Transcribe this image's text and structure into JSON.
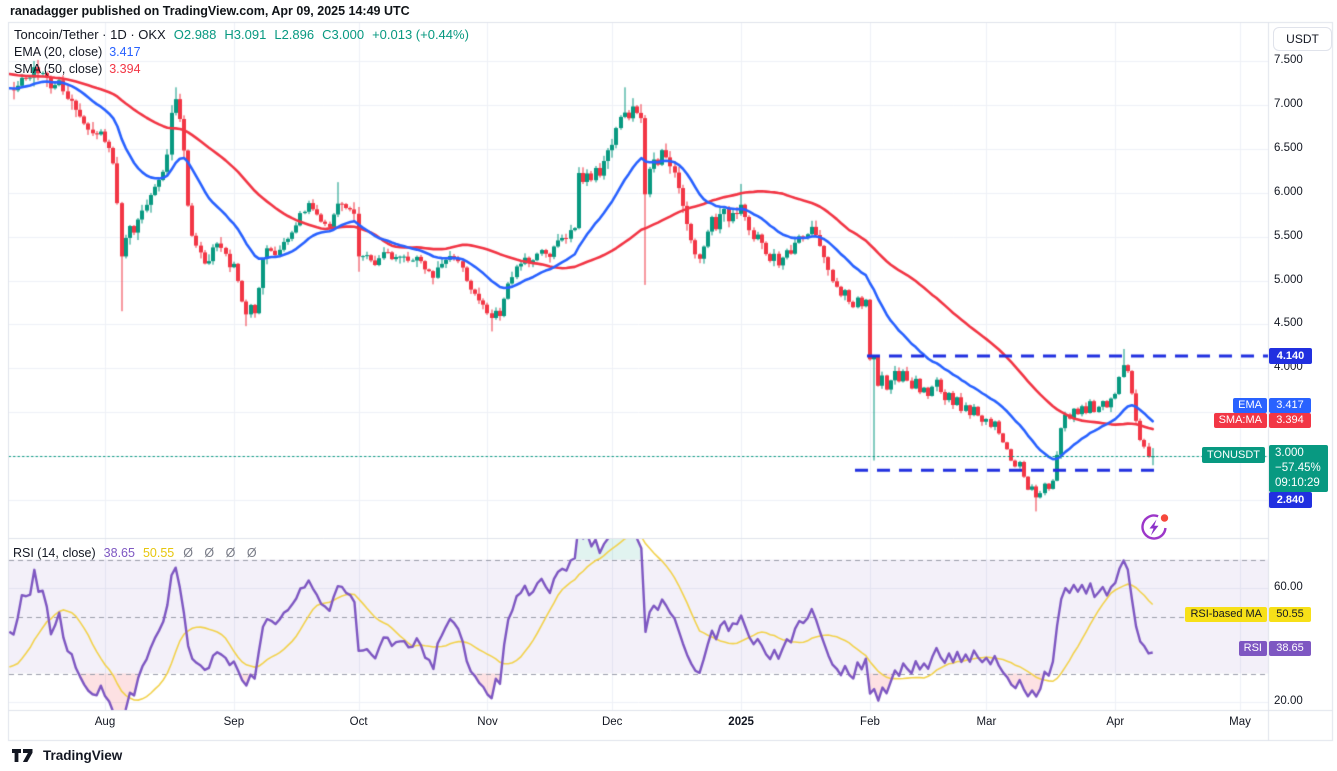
{
  "topbar": {
    "attribution": "ranadagger published on TradingView.com, Apr 09, 2025 14:49 UTC"
  },
  "legend": {
    "symbol": "Toncoin/Tether · 1D · OKX",
    "ohlc": [
      {
        "k": "O",
        "v": "2.988"
      },
      {
        "k": "H",
        "v": "3.091"
      },
      {
        "k": "L",
        "v": "2.896"
      },
      {
        "k": "C",
        "v": "3.000"
      }
    ],
    "change": "+0.013 (+0.44%)",
    "ema_label": "EMA (20, close)",
    "ema_value": "3.417",
    "sma_label": "SMA (50, close)",
    "sma_value": "3.394"
  },
  "rsi_legend": {
    "label": "RSI (14, close)",
    "value": "38.65",
    "ma_value": "50.55",
    "hidden_plots": "Ø Ø Ø Ø"
  },
  "price_axis": {
    "currency_button": "USDT",
    "ticks": [
      "7.500",
      "7.000",
      "6.500",
      "6.000",
      "5.500",
      "5.000",
      "4.500",
      "4.000"
    ],
    "badges": {
      "resistance": "4.140",
      "support": "2.840",
      "ema": {
        "name": "EMA",
        "value": "3.417"
      },
      "sma": {
        "name": "SMA:MA",
        "value": "3.394"
      },
      "symbol": {
        "name": "TONUSDT",
        "price": "3.000",
        "change_pct": "−57.45%",
        "countdown": "09:10:29"
      }
    }
  },
  "rsi_axis": {
    "ticks": [
      "60.00",
      "20.00"
    ],
    "ma_badge": {
      "name": "RSI-based MA",
      "value": "50.55"
    },
    "rsi_badge": {
      "name": "RSI",
      "value": "38.65"
    }
  },
  "time_axis": {
    "labels": [
      "Aug",
      "Sep",
      "Oct",
      "Nov",
      "Dec",
      "2025",
      "Feb",
      "Mar",
      "Apr",
      "May"
    ]
  },
  "footer": {
    "brand": "TradingView"
  },
  "colors": {
    "up": "#089981",
    "down": "#f23645",
    "ema": "#2962ff",
    "sma": "#f23645",
    "drawing_blue": "#2130e0",
    "rsi": "#7e57c2",
    "rsi_ma": "#f2d24d",
    "rsi_ma_badge": "#f7e018",
    "teal_badge": "#089981",
    "grid": "#eef1f7",
    "band_fill": "rgba(126,87,194,0.09)",
    "oversold_fill": "rgba(242,54,69,0.15)",
    "overbought_fill": "rgba(8,153,129,0.12)",
    "axis_line": "#e0e3eb",
    "text": "#131722"
  },
  "chart_data": {
    "type": "candlestick",
    "title": "Toncoin/Tether · 1D · OKX",
    "xlabel": "",
    "ylabel": "USDT",
    "y_ticks": [
      7.5,
      7.0,
      6.5,
      6.0,
      5.5,
      5.0,
      4.5,
      4.0
    ],
    "levels": {
      "resistance": 4.14,
      "support": 2.84,
      "last_price": 3.0
    },
    "current_candle": {
      "open": 2.988,
      "high": 3.091,
      "low": 2.896,
      "close": 3.0,
      "change": 0.013,
      "change_pct": 0.44
    },
    "indicators": {
      "ema": {
        "period": 20,
        "last": 3.417
      },
      "sma": {
        "period": 50,
        "last": 3.394
      },
      "rsi": {
        "period": 14,
        "last": 38.65,
        "ma_last": 50.55,
        "levels": [
          70,
          50,
          30
        ],
        "ticks": [
          60,
          20
        ]
      }
    },
    "months": [
      {
        "label": "Aug",
        "day": 31
      },
      {
        "label": "Sep",
        "day": 62
      },
      {
        "label": "Oct",
        "day": 92
      },
      {
        "label": "Nov",
        "day": 123
      },
      {
        "label": "Dec",
        "day": 153
      },
      {
        "label": "2025",
        "day": 184
      },
      {
        "label": "Feb",
        "day": 215
      },
      {
        "label": "Mar",
        "day": 243
      },
      {
        "label": "Apr",
        "day": 274
      },
      {
        "label": "May",
        "day": 304
      }
    ],
    "price_path": [
      [
        -45,
        7.6
      ],
      [
        -35,
        7.45
      ],
      [
        -25,
        7.55
      ],
      [
        -15,
        7.3
      ],
      [
        -8,
        7.35
      ],
      [
        0,
        7.15
      ],
      [
        4,
        7.05
      ],
      [
        6,
        7.1
      ],
      [
        8,
        7.15
      ],
      [
        10,
        7.25
      ],
      [
        12,
        7.3
      ],
      [
        14,
        7.4
      ],
      [
        16,
        7.35
      ],
      [
        18,
        7.2
      ],
      [
        20,
        7.28
      ],
      [
        22,
        7.1
      ],
      [
        24,
        6.95
      ],
      [
        26,
        6.8
      ],
      [
        28,
        6.65
      ],
      [
        30,
        6.72
      ],
      [
        32,
        6.5
      ],
      [
        33,
        6.3
      ],
      [
        34,
        5.9
      ],
      [
        35,
        5.3
      ],
      [
        36,
        5.5
      ],
      [
        37,
        5.65
      ],
      [
        38,
        5.55
      ],
      [
        39,
        5.7
      ],
      [
        40,
        5.8
      ],
      [
        42,
        5.95
      ],
      [
        44,
        6.15
      ],
      [
        46,
        6.4
      ],
      [
        47,
        6.9
      ],
      [
        48,
        7.05
      ],
      [
        49,
        6.8
      ],
      [
        50,
        6.5
      ],
      [
        51,
        5.85
      ],
      [
        52,
        5.5
      ],
      [
        53,
        5.4
      ],
      [
        54,
        5.3
      ],
      [
        55,
        5.2
      ],
      [
        56,
        5.25
      ],
      [
        57,
        5.4
      ],
      [
        58,
        5.45
      ],
      [
        59,
        5.35
      ],
      [
        60,
        5.3
      ],
      [
        61,
        5.15
      ],
      [
        62,
        5.2
      ],
      [
        63,
        5.0
      ],
      [
        64,
        4.75
      ],
      [
        65,
        4.62
      ],
      [
        66,
        4.75
      ],
      [
        67,
        4.6
      ],
      [
        68,
        4.9
      ],
      [
        69,
        5.25
      ],
      [
        70,
        5.35
      ],
      [
        72,
        5.3
      ],
      [
        74,
        5.45
      ],
      [
        76,
        5.55
      ],
      [
        78,
        5.75
      ],
      [
        80,
        5.85
      ],
      [
        81,
        5.8
      ],
      [
        83,
        5.7
      ],
      [
        85,
        5.6
      ],
      [
        86,
        5.75
      ],
      [
        87,
        5.9
      ],
      [
        88,
        5.85
      ],
      [
        90,
        5.8
      ],
      [
        91,
        5.75
      ],
      [
        92,
        5.25
      ],
      [
        94,
        5.3
      ],
      [
        96,
        5.2
      ],
      [
        98,
        5.35
      ],
      [
        100,
        5.25
      ],
      [
        102,
        5.3
      ],
      [
        104,
        5.2
      ],
      [
        106,
        5.3
      ],
      [
        108,
        5.15
      ],
      [
        110,
        5.05
      ],
      [
        112,
        5.2
      ],
      [
        114,
        5.3
      ],
      [
        116,
        5.25
      ],
      [
        118,
        5.0
      ],
      [
        120,
        4.85
      ],
      [
        122,
        4.7
      ],
      [
        124,
        4.55
      ],
      [
        125,
        4.65
      ],
      [
        126,
        4.6
      ],
      [
        127,
        4.8
      ],
      [
        128,
        4.95
      ],
      [
        130,
        5.15
      ],
      [
        132,
        5.25
      ],
      [
        134,
        5.2
      ],
      [
        136,
        5.35
      ],
      [
        138,
        5.3
      ],
      [
        140,
        5.45
      ],
      [
        142,
        5.5
      ],
      [
        144,
        5.6
      ],
      [
        145,
        6.25
      ],
      [
        146,
        6.1
      ],
      [
        147,
        6.25
      ],
      [
        148,
        6.15
      ],
      [
        149,
        6.3
      ],
      [
        150,
        6.2
      ],
      [
        151,
        6.35
      ],
      [
        152,
        6.5
      ],
      [
        153,
        6.55
      ],
      [
        154,
        6.7
      ],
      [
        155,
        6.85
      ],
      [
        156,
        6.9
      ],
      [
        157,
        6.85
      ],
      [
        158,
        6.95
      ],
      [
        159,
        6.9
      ],
      [
        160,
        6.85
      ],
      [
        161,
        5.95
      ],
      [
        162,
        6.25
      ],
      [
        163,
        6.4
      ],
      [
        164,
        6.35
      ],
      [
        165,
        6.45
      ],
      [
        166,
        6.4
      ],
      [
        167,
        6.3
      ],
      [
        168,
        6.2
      ],
      [
        169,
        6.05
      ],
      [
        170,
        5.85
      ],
      [
        171,
        5.65
      ],
      [
        172,
        5.45
      ],
      [
        173,
        5.3
      ],
      [
        174,
        5.25
      ],
      [
        175,
        5.4
      ],
      [
        176,
        5.55
      ],
      [
        177,
        5.7
      ],
      [
        178,
        5.6
      ],
      [
        179,
        5.75
      ],
      [
        180,
        5.85
      ],
      [
        181,
        5.7
      ],
      [
        182,
        5.8
      ],
      [
        183,
        5.75
      ],
      [
        184,
        5.85
      ],
      [
        185,
        5.7
      ],
      [
        186,
        5.6
      ],
      [
        187,
        5.45
      ],
      [
        188,
        5.55
      ],
      [
        189,
        5.4
      ],
      [
        190,
        5.3
      ],
      [
        191,
        5.2
      ],
      [
        192,
        5.3
      ],
      [
        193,
        5.15
      ],
      [
        194,
        5.25
      ],
      [
        195,
        5.35
      ],
      [
        196,
        5.3
      ],
      [
        197,
        5.4
      ],
      [
        198,
        5.5
      ],
      [
        199,
        5.45
      ],
      [
        200,
        5.55
      ],
      [
        201,
        5.6
      ],
      [
        202,
        5.5
      ],
      [
        203,
        5.4
      ],
      [
        204,
        5.25
      ],
      [
        205,
        5.1
      ],
      [
        206,
        5.0
      ],
      [
        207,
        4.9
      ],
      [
        208,
        4.82
      ],
      [
        209,
        4.9
      ],
      [
        210,
        4.78
      ],
      [
        211,
        4.7
      ],
      [
        212,
        4.78
      ],
      [
        213,
        4.72
      ],
      [
        214,
        4.78
      ],
      [
        215,
        4.08
      ],
      [
        216,
        4.12
      ],
      [
        217,
        3.8
      ],
      [
        218,
        3.9
      ],
      [
        219,
        3.75
      ],
      [
        220,
        3.85
      ],
      [
        221,
        3.95
      ],
      [
        222,
        3.85
      ],
      [
        223,
        3.98
      ],
      [
        224,
        3.88
      ],
      [
        225,
        3.78
      ],
      [
        226,
        3.88
      ],
      [
        227,
        3.72
      ],
      [
        228,
        3.78
      ],
      [
        229,
        3.68
      ],
      [
        230,
        3.78
      ],
      [
        231,
        3.88
      ],
      [
        232,
        3.72
      ],
      [
        233,
        3.62
      ],
      [
        234,
        3.72
      ],
      [
        235,
        3.58
      ],
      [
        236,
        3.68
      ],
      [
        237,
        3.52
      ],
      [
        238,
        3.58
      ],
      [
        239,
        3.48
      ],
      [
        240,
        3.56
      ],
      [
        241,
        3.46
      ],
      [
        242,
        3.38
      ],
      [
        243,
        3.42
      ],
      [
        244,
        3.32
      ],
      [
        245,
        3.38
      ],
      [
        246,
        3.26
      ],
      [
        247,
        3.16
      ],
      [
        248,
        3.06
      ],
      [
        249,
        2.96
      ],
      [
        250,
        2.88
      ],
      [
        251,
        2.92
      ],
      [
        252,
        2.78
      ],
      [
        253,
        2.62
      ],
      [
        254,
        2.66
      ],
      [
        255,
        2.52
      ],
      [
        256,
        2.58
      ],
      [
        257,
        2.68
      ],
      [
        258,
        2.62
      ],
      [
        259,
        2.72
      ],
      [
        260,
        3.02
      ],
      [
        261,
        3.32
      ],
      [
        262,
        3.48
      ],
      [
        263,
        3.42
      ],
      [
        264,
        3.52
      ],
      [
        265,
        3.46
      ],
      [
        266,
        3.56
      ],
      [
        267,
        3.5
      ],
      [
        268,
        3.62
      ],
      [
        269,
        3.52
      ],
      [
        270,
        3.56
      ],
      [
        271,
        3.62
      ],
      [
        272,
        3.56
      ],
      [
        273,
        3.66
      ],
      [
        274,
        3.72
      ],
      [
        275,
        3.88
      ],
      [
        276,
        4.06
      ],
      [
        277,
        3.96
      ],
      [
        278,
        3.72
      ],
      [
        279,
        3.42
      ],
      [
        280,
        3.18
      ],
      [
        281,
        3.1
      ],
      [
        282,
        2.99
      ],
      [
        283,
        3.0
      ]
    ],
    "wick_overrides": {
      "14": {
        "high": 7.5
      },
      "35": {
        "low": 4.65
      },
      "48": {
        "high": 7.2
      },
      "65": {
        "low": 4.48
      },
      "87": {
        "high": 6.12
      },
      "92": {
        "low": 5.1
      },
      "124": {
        "low": 4.42
      },
      "156": {
        "high": 7.2
      },
      "161": {
        "low": 4.95
      },
      "184": {
        "high": 6.1
      },
      "201": {
        "high": 5.68
      },
      "216": {
        "low": 2.95
      },
      "255": {
        "low": 2.37
      },
      "276": {
        "high": 4.22
      },
      "283": {
        "open": 2.988,
        "high": 3.091,
        "low": 2.896,
        "close": 3.0
      }
    }
  }
}
